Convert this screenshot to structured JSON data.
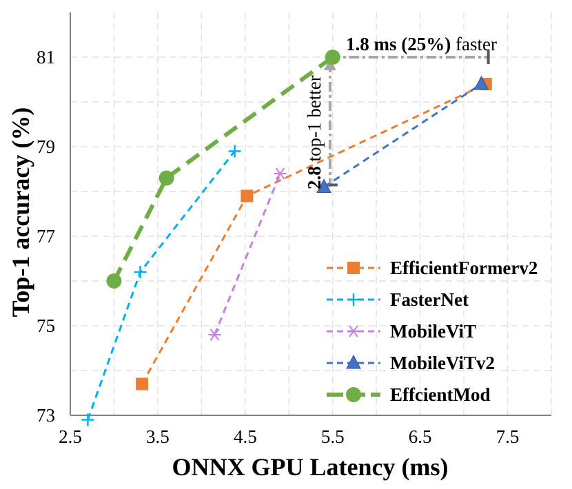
{
  "chart_data": {
    "type": "line",
    "xlabel": "ONNX GPU Latency (ms)",
    "ylabel": "Top-1 accuracy (%)",
    "xlim": [
      2.5,
      8.0
    ],
    "ylim": [
      73,
      82.0
    ],
    "xticks": [
      2.5,
      3.5,
      4.5,
      5.5,
      6.5,
      7.5
    ],
    "yticks": [
      73,
      75,
      77,
      79,
      81
    ],
    "grid": true,
    "legend_position": "bottom-right",
    "series": [
      {
        "name": "EfficientFormerv2",
        "color": "#ED7D31",
        "marker": "square",
        "x": [
          3.32,
          4.52,
          7.25
        ],
        "y": [
          73.7,
          77.9,
          80.4
        ]
      },
      {
        "name": "FasterNet",
        "color": "#00B0F0",
        "marker": "plus",
        "x": [
          2.7,
          3.3,
          4.38
        ],
        "y": [
          72.9,
          76.2,
          78.9
        ]
      },
      {
        "name": "MobileViT",
        "color": "#C97FE0",
        "marker": "asterisk",
        "x": [
          4.15,
          4.9
        ],
        "y": [
          74.8,
          78.4
        ]
      },
      {
        "name": "MobileViTv2",
        "color": "#4472C4",
        "marker": "triangle",
        "x": [
          5.4,
          7.2
        ],
        "y": [
          78.1,
          80.4
        ]
      },
      {
        "name": "EffcientMod",
        "color": "#70AD47",
        "marker": "circle",
        "x": [
          3.0,
          3.6,
          5.5
        ],
        "y": [
          76.0,
          78.3,
          81.0
        ]
      }
    ],
    "annotations": {
      "horizontal": {
        "bold": "1.8 ms (25%)",
        "rest": " faster"
      },
      "vertical": {
        "bold": "2.8",
        "rest": " top-1 better"
      }
    }
  }
}
